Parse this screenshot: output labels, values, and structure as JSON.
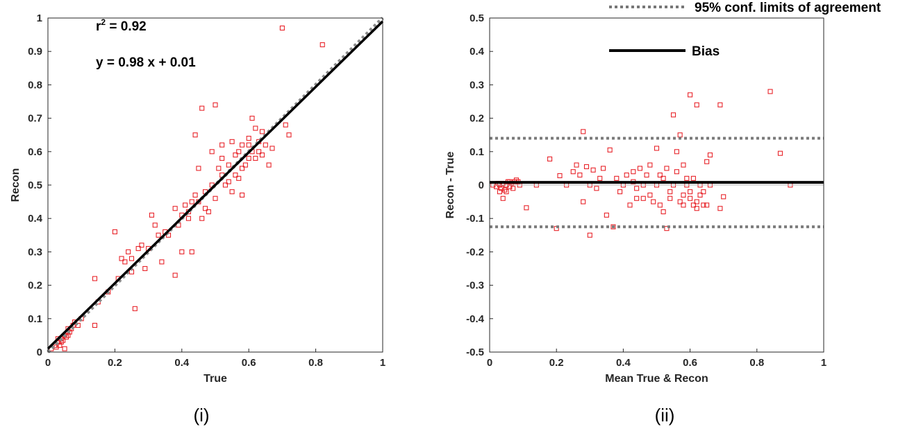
{
  "chart_data": [
    {
      "type": "scatter",
      "caption": "(i)",
      "xlabel": "True",
      "ylabel": "Recon",
      "xlim": [
        0,
        1
      ],
      "ylim": [
        0,
        1
      ],
      "xticks": [
        "0",
        "0.2",
        "0.4",
        "0.6",
        "0.8",
        "1"
      ],
      "yticks": [
        "0",
        "0.1",
        "0.2",
        "0.3",
        "0.4",
        "0.5",
        "0.6",
        "0.7",
        "0.8",
        "0.9",
        "1"
      ],
      "annotations": {
        "r2": "r² = 0.92",
        "fit": "y = 0.98 x + 0.01"
      },
      "fit_line": {
        "slope": 0.98,
        "intercept": 0.01,
        "x": [
          0,
          1
        ]
      },
      "identity_line": {
        "slope": 1,
        "intercept": 0,
        "x": [
          0,
          1
        ]
      },
      "points": [
        [
          0.01,
          0.01
        ],
        [
          0.02,
          0.02
        ],
        [
          0.025,
          0.015
        ],
        [
          0.03,
          0.03
        ],
        [
          0.035,
          0.02
        ],
        [
          0.04,
          0.04
        ],
        [
          0.045,
          0.035
        ],
        [
          0.05,
          0.05
        ],
        [
          0.055,
          0.045
        ],
        [
          0.06,
          0.05
        ],
        [
          0.065,
          0.06
        ],
        [
          0.07,
          0.07
        ],
        [
          0.075,
          0.08
        ],
        [
          0.08,
          0.09
        ],
        [
          0.09,
          0.08
        ],
        [
          0.1,
          0.1
        ],
        [
          0.05,
          0.01
        ],
        [
          0.04,
          0.03
        ],
        [
          0.03,
          0.04
        ],
        [
          0.06,
          0.07
        ],
        [
          0.14,
          0.22
        ],
        [
          0.14,
          0.08
        ],
        [
          0.15,
          0.15
        ],
        [
          0.18,
          0.18
        ],
        [
          0.2,
          0.36
        ],
        [
          0.21,
          0.22
        ],
        [
          0.22,
          0.28
        ],
        [
          0.23,
          0.27
        ],
        [
          0.24,
          0.3
        ],
        [
          0.25,
          0.28
        ],
        [
          0.25,
          0.24
        ],
        [
          0.26,
          0.13
        ],
        [
          0.27,
          0.31
        ],
        [
          0.28,
          0.32
        ],
        [
          0.29,
          0.25
        ],
        [
          0.3,
          0.31
        ],
        [
          0.31,
          0.41
        ],
        [
          0.32,
          0.38
        ],
        [
          0.33,
          0.35
        ],
        [
          0.34,
          0.27
        ],
        [
          0.35,
          0.36
        ],
        [
          0.36,
          0.35
        ],
        [
          0.38,
          0.23
        ],
        [
          0.38,
          0.43
        ],
        [
          0.39,
          0.38
        ],
        [
          0.4,
          0.41
        ],
        [
          0.41,
          0.44
        ],
        [
          0.42,
          0.4
        ],
        [
          0.42,
          0.42
        ],
        [
          0.43,
          0.45
        ],
        [
          0.43,
          0.3
        ],
        [
          0.44,
          0.47
        ],
        [
          0.44,
          0.65
        ],
        [
          0.45,
          0.45
        ],
        [
          0.46,
          0.73
        ],
        [
          0.46,
          0.4
        ],
        [
          0.47,
          0.48
        ],
        [
          0.48,
          0.42
        ],
        [
          0.49,
          0.5
        ],
        [
          0.49,
          0.6
        ],
        [
          0.5,
          0.74
        ],
        [
          0.5,
          0.46
        ],
        [
          0.51,
          0.55
        ],
        [
          0.52,
          0.53
        ],
        [
          0.52,
          0.62
        ],
        [
          0.53,
          0.5
        ],
        [
          0.54,
          0.56
        ],
        [
          0.55,
          0.63
        ],
        [
          0.55,
          0.48
        ],
        [
          0.56,
          0.59
        ],
        [
          0.57,
          0.6
        ],
        [
          0.57,
          0.52
        ],
        [
          0.58,
          0.62
        ],
        [
          0.58,
          0.47
        ],
        [
          0.59,
          0.56
        ],
        [
          0.6,
          0.64
        ],
        [
          0.6,
          0.58
        ],
        [
          0.61,
          0.7
        ],
        [
          0.61,
          0.6
        ],
        [
          0.62,
          0.67
        ],
        [
          0.62,
          0.58
        ],
        [
          0.63,
          0.6
        ],
        [
          0.64,
          0.66
        ],
        [
          0.64,
          0.59
        ],
        [
          0.65,
          0.62
        ],
        [
          0.66,
          0.56
        ],
        [
          0.67,
          0.61
        ],
        [
          0.7,
          0.97
        ],
        [
          0.71,
          0.68
        ],
        [
          0.72,
          0.65
        ],
        [
          0.82,
          0.92
        ],
        [
          0.4,
          0.3
        ],
        [
          0.45,
          0.55
        ],
        [
          0.47,
          0.43
        ],
        [
          0.52,
          0.58
        ],
        [
          0.54,
          0.51
        ],
        [
          0.56,
          0.53
        ],
        [
          0.58,
          0.55
        ],
        [
          0.6,
          0.62
        ],
        [
          0.63,
          0.63
        ]
      ]
    },
    {
      "type": "scatter",
      "caption": "(ii)",
      "xlabel": "Mean True & Recon",
      "ylabel": "Recon - True",
      "xlim": [
        0,
        1
      ],
      "ylim": [
        -0.5,
        0.5
      ],
      "xticks": [
        "0",
        "0.2",
        "0.4",
        "0.6",
        "0.8",
        "1"
      ],
      "yticks": [
        "0.5",
        "0.4",
        "0.3",
        "0.2",
        "0.1",
        "0",
        "-0.1",
        "-0.2",
        "-0.3",
        "-0.4",
        "-0.5"
      ],
      "bias": 0.008,
      "limits_of_agreement": [
        0.14,
        -0.125
      ],
      "legend": {
        "limits": "95% conf. limits of agreement",
        "bias": "Bias"
      },
      "points": [
        [
          0.01,
          0.0
        ],
        [
          0.02,
          -0.005
        ],
        [
          0.025,
          0.005
        ],
        [
          0.03,
          0.0
        ],
        [
          0.035,
          -0.01
        ],
        [
          0.04,
          -0.04
        ],
        [
          0.04,
          0.005
        ],
        [
          0.045,
          -0.015
        ],
        [
          0.05,
          0.0
        ],
        [
          0.055,
          0.01
        ],
        [
          0.06,
          -0.005
        ],
        [
          0.065,
          0.005
        ],
        [
          0.07,
          -0.01
        ],
        [
          0.075,
          0.01
        ],
        [
          0.08,
          0.015
        ],
        [
          0.085,
          0.01
        ],
        [
          0.09,
          0.0
        ],
        [
          0.05,
          -0.02
        ],
        [
          0.03,
          -0.02
        ],
        [
          0.06,
          0.01
        ],
        [
          0.11,
          -0.068
        ],
        [
          0.14,
          0.0
        ],
        [
          0.18,
          0.078
        ],
        [
          0.2,
          -0.13
        ],
        [
          0.21,
          0.028
        ],
        [
          0.23,
          0.0
        ],
        [
          0.25,
          0.04
        ],
        [
          0.26,
          0.06
        ],
        [
          0.27,
          0.03
        ],
        [
          0.28,
          -0.05
        ],
        [
          0.28,
          0.16
        ],
        [
          0.29,
          0.055
        ],
        [
          0.3,
          -0.15
        ],
        [
          0.3,
          0.0
        ],
        [
          0.31,
          0.045
        ],
        [
          0.32,
          -0.01
        ],
        [
          0.33,
          0.02
        ],
        [
          0.34,
          0.05
        ],
        [
          0.35,
          -0.09
        ],
        [
          0.36,
          0.105
        ],
        [
          0.37,
          -0.125
        ],
        [
          0.38,
          0.02
        ],
        [
          0.39,
          -0.02
        ],
        [
          0.4,
          0.0
        ],
        [
          0.41,
          0.03
        ],
        [
          0.42,
          -0.06
        ],
        [
          0.43,
          0.04
        ],
        [
          0.44,
          -0.04
        ],
        [
          0.45,
          0.05
        ],
        [
          0.46,
          0.0
        ],
        [
          0.47,
          0.03
        ],
        [
          0.48,
          -0.03
        ],
        [
          0.49,
          -0.05
        ],
        [
          0.5,
          0.11
        ],
        [
          0.5,
          0.0
        ],
        [
          0.51,
          0.03
        ],
        [
          0.52,
          -0.08
        ],
        [
          0.53,
          -0.13
        ],
        [
          0.53,
          0.05
        ],
        [
          0.54,
          -0.04
        ],
        [
          0.55,
          0.21
        ],
        [
          0.55,
          0.0
        ],
        [
          0.56,
          0.1
        ],
        [
          0.57,
          0.15
        ],
        [
          0.57,
          -0.05
        ],
        [
          0.58,
          0.06
        ],
        [
          0.58,
          -0.03
        ],
        [
          0.59,
          0.0
        ],
        [
          0.6,
          0.27
        ],
        [
          0.6,
          -0.02
        ],
        [
          0.61,
          0.02
        ],
        [
          0.61,
          -0.06
        ],
        [
          0.62,
          0.24
        ],
        [
          0.62,
          -0.05
        ],
        [
          0.63,
          0.0
        ],
        [
          0.63,
          -0.03
        ],
        [
          0.64,
          -0.06
        ],
        [
          0.65,
          0.07
        ],
        [
          0.65,
          -0.06
        ],
        [
          0.66,
          0.09
        ],
        [
          0.66,
          0.0
        ],
        [
          0.69,
          0.24
        ],
        [
          0.69,
          -0.07
        ],
        [
          0.7,
          -0.035
        ],
        [
          0.84,
          0.28
        ],
        [
          0.87,
          0.095
        ],
        [
          0.9,
          0.0
        ],
        [
          0.43,
          0.01
        ],
        [
          0.46,
          -0.04
        ],
        [
          0.48,
          0.06
        ],
        [
          0.52,
          0.02
        ],
        [
          0.54,
          -0.02
        ],
        [
          0.56,
          0.04
        ],
        [
          0.58,
          -0.06
        ],
        [
          0.6,
          -0.04
        ],
        [
          0.62,
          -0.07
        ],
        [
          0.64,
          -0.02
        ],
        [
          0.44,
          -0.01
        ],
        [
          0.51,
          -0.06
        ],
        [
          0.59,
          0.02
        ]
      ]
    }
  ]
}
